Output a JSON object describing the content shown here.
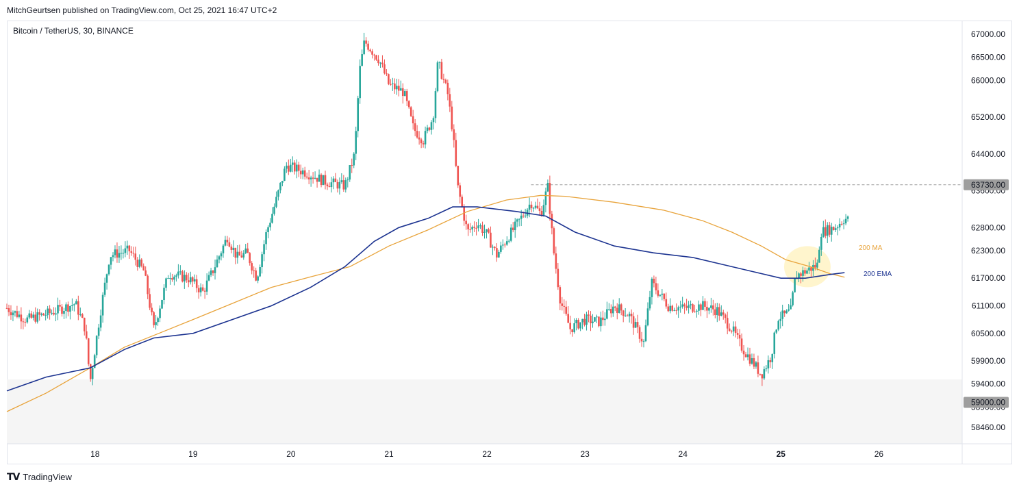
{
  "header": {
    "published_line": "MitchGeurtsen published on TradingView.com, Oct 25, 2021 16:47 UTC+2",
    "symbol_line": "Bitcoin / TetherUS, 30, BINANCE"
  },
  "footer": {
    "brand": "TradingView",
    "logo_icon": "tradingview-logo-icon"
  },
  "colors": {
    "up": "#26a69a",
    "down": "#ef5350",
    "ma": "#e8a33a",
    "ema": "#1c3390",
    "support_zone": "#f5f5f5",
    "highlight": "#fff3c4",
    "price_tag_bg": "#9e9e9e"
  },
  "chart_data": {
    "type": "candlestick",
    "title": "Bitcoin / TetherUS, 30, BINANCE",
    "ylim": [
      58100,
      67300
    ],
    "x_range_days": [
      17.1,
      26.85
    ],
    "x_ticks": [
      {
        "day": 18,
        "label": "18"
      },
      {
        "day": 19,
        "label": "19"
      },
      {
        "day": 20,
        "label": "20"
      },
      {
        "day": 21,
        "label": "21"
      },
      {
        "day": 22,
        "label": "22"
      },
      {
        "day": 23,
        "label": "23"
      },
      {
        "day": 24,
        "label": "24"
      },
      {
        "day": 25,
        "label": "25",
        "bold": true
      },
      {
        "day": 26,
        "label": "26"
      }
    ],
    "y_ticks": [
      {
        "value": 67000,
        "label": "67000.00"
      },
      {
        "value": 66500,
        "label": "66500.00"
      },
      {
        "value": 66000,
        "label": "66000.00"
      },
      {
        "value": 65200,
        "label": "65200.00"
      },
      {
        "value": 64400,
        "label": "64400.00"
      },
      {
        "value": 63600,
        "label": "63600.00"
      },
      {
        "value": 62800,
        "label": "62800.00"
      },
      {
        "value": 62300,
        "label": "62300.00"
      },
      {
        "value": 61700,
        "label": "61700.00"
      },
      {
        "value": 61100,
        "label": "61100.00"
      },
      {
        "value": 60500,
        "label": "60500.00"
      },
      {
        "value": 59900,
        "label": "59900.00"
      },
      {
        "value": 59400,
        "label": "59400.00"
      },
      {
        "value": 58900,
        "label": "58900.00"
      },
      {
        "value": 58460,
        "label": "58460.00"
      }
    ],
    "price_tags": [
      {
        "value": 63730,
        "label": "63730.00"
      },
      {
        "value": 59000,
        "label": "59000.00"
      }
    ],
    "resistance_line": {
      "value": 63730,
      "from_day": 22.45,
      "style": "dashed"
    },
    "support_zone": {
      "from": 58100,
      "to": 59500
    },
    "highlight_circle": {
      "day": 25.27,
      "value": 61950
    },
    "anchors": [
      [
        17.1,
        61050
      ],
      [
        17.3,
        60800
      ],
      [
        17.55,
        60950
      ],
      [
        17.8,
        61150
      ],
      [
        17.9,
        60600
      ],
      [
        17.95,
        59450
      ],
      [
        18.05,
        60900
      ],
      [
        18.15,
        62200
      ],
      [
        18.35,
        62300
      ],
      [
        18.5,
        61850
      ],
      [
        18.6,
        60600
      ],
      [
        18.75,
        61800
      ],
      [
        18.95,
        61700
      ],
      [
        19.1,
        61400
      ],
      [
        19.2,
        61850
      ],
      [
        19.35,
        62600
      ],
      [
        19.45,
        62150
      ],
      [
        19.55,
        62250
      ],
      [
        19.65,
        61700
      ],
      [
        19.75,
        62700
      ],
      [
        19.85,
        63400
      ],
      [
        19.95,
        64150
      ],
      [
        20.15,
        64000
      ],
      [
        20.35,
        63800
      ],
      [
        20.55,
        63700
      ],
      [
        20.65,
        64400
      ],
      [
        20.7,
        66200
      ],
      [
        20.75,
        66850
      ],
      [
        20.9,
        66450
      ],
      [
        21.0,
        65900
      ],
      [
        21.15,
        65750
      ],
      [
        21.25,
        64950
      ],
      [
        21.35,
        64700
      ],
      [
        21.45,
        65200
      ],
      [
        21.5,
        66400
      ],
      [
        21.6,
        65700
      ],
      [
        21.65,
        64900
      ],
      [
        21.7,
        63700
      ],
      [
        21.8,
        62700
      ],
      [
        21.9,
        62900
      ],
      [
        22.0,
        62650
      ],
      [
        22.1,
        62200
      ],
      [
        22.2,
        62550
      ],
      [
        22.3,
        62850
      ],
      [
        22.45,
        63350
      ],
      [
        22.55,
        63100
      ],
      [
        22.62,
        63700
      ],
      [
        22.68,
        62300
      ],
      [
        22.75,
        61200
      ],
      [
        22.85,
        60600
      ],
      [
        23.0,
        60800
      ],
      [
        23.15,
        60750
      ],
      [
        23.3,
        61100
      ],
      [
        23.45,
        60900
      ],
      [
        23.6,
        60300
      ],
      [
        23.68,
        61600
      ],
      [
        23.85,
        61100
      ],
      [
        24.0,
        61050
      ],
      [
        24.2,
        61100
      ],
      [
        24.35,
        61000
      ],
      [
        24.5,
        60600
      ],
      [
        24.6,
        60200
      ],
      [
        24.72,
        59850
      ],
      [
        24.8,
        59600
      ],
      [
        24.9,
        60000
      ],
      [
        24.97,
        60850
      ],
      [
        25.05,
        60900
      ],
      [
        25.1,
        61000
      ],
      [
        25.15,
        61750
      ],
      [
        25.25,
        61850
      ],
      [
        25.38,
        62000
      ],
      [
        25.4,
        62700
      ],
      [
        25.55,
        62800
      ],
      [
        25.65,
        63000
      ],
      [
        25.7,
        62950
      ]
    ],
    "series": [
      {
        "name": "200 MA",
        "color": "#e8a33a",
        "points": [
          [
            17.1,
            58800
          ],
          [
            17.5,
            59200
          ],
          [
            17.95,
            59750
          ],
          [
            18.3,
            60200
          ],
          [
            18.65,
            60500
          ],
          [
            19.0,
            60800
          ],
          [
            19.4,
            61150
          ],
          [
            19.8,
            61500
          ],
          [
            20.2,
            61730
          ],
          [
            20.6,
            61950
          ],
          [
            21.0,
            62400
          ],
          [
            21.4,
            62750
          ],
          [
            21.8,
            63150
          ],
          [
            22.2,
            63400
          ],
          [
            22.55,
            63500
          ],
          [
            22.8,
            63480
          ],
          [
            23.3,
            63350
          ],
          [
            23.8,
            63180
          ],
          [
            24.2,
            62950
          ],
          [
            24.5,
            62700
          ],
          [
            24.8,
            62400
          ],
          [
            25.05,
            62100
          ],
          [
            25.3,
            61950
          ],
          [
            25.5,
            61800
          ],
          [
            25.65,
            61720
          ]
        ]
      },
      {
        "name": "200 EMA",
        "color": "#1c3390",
        "points": [
          [
            17.1,
            59250
          ],
          [
            17.5,
            59550
          ],
          [
            17.95,
            59750
          ],
          [
            18.3,
            60150
          ],
          [
            18.6,
            60400
          ],
          [
            19.0,
            60500
          ],
          [
            19.4,
            60800
          ],
          [
            19.8,
            61100
          ],
          [
            20.2,
            61500
          ],
          [
            20.55,
            61950
          ],
          [
            20.85,
            62500
          ],
          [
            21.1,
            62800
          ],
          [
            21.4,
            63000
          ],
          [
            21.65,
            63250
          ],
          [
            21.9,
            63250
          ],
          [
            22.3,
            63150
          ],
          [
            22.6,
            63050
          ],
          [
            22.9,
            62700
          ],
          [
            23.3,
            62400
          ],
          [
            23.7,
            62250
          ],
          [
            24.1,
            62150
          ],
          [
            24.4,
            62000
          ],
          [
            24.7,
            61850
          ],
          [
            25.0,
            61700
          ],
          [
            25.25,
            61700
          ],
          [
            25.5,
            61780
          ],
          [
            25.65,
            61820
          ]
        ]
      }
    ]
  }
}
